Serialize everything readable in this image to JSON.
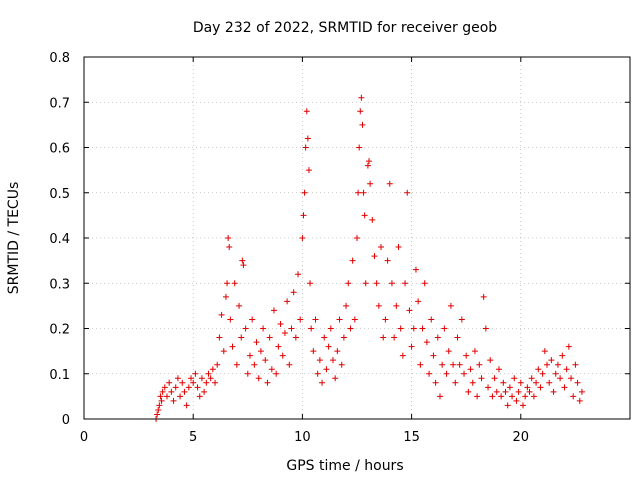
{
  "chart_data": {
    "type": "scatter",
    "title": "Day 232 of 2022, SRMTID for receiver geob",
    "xlabel": "GPS time / hours",
    "ylabel": "SRMTID / TECUs",
    "xlim": [
      0,
      25
    ],
    "ylim": [
      0,
      0.8
    ],
    "xticks": [
      "0",
      "5",
      "10",
      "15",
      "20"
    ],
    "yticks": [
      "0",
      "0.1",
      "0.2",
      "0.3",
      "0.4",
      "0.5",
      "0.6",
      "0.7",
      "0.8"
    ],
    "grid": true,
    "marker": "+",
    "color": "#e00000",
    "series": [
      {
        "name": "SRMTID",
        "points": [
          [
            3.3,
            0.0
          ],
          [
            3.35,
            0.01
          ],
          [
            3.4,
            0.02
          ],
          [
            3.45,
            0.03
          ],
          [
            3.5,
            0.05
          ],
          [
            3.55,
            0.04
          ],
          [
            3.6,
            0.06
          ],
          [
            3.7,
            0.07
          ],
          [
            3.8,
            0.05
          ],
          [
            3.9,
            0.08
          ],
          [
            4.0,
            0.06
          ],
          [
            4.1,
            0.04
          ],
          [
            4.2,
            0.07
          ],
          [
            4.3,
            0.09
          ],
          [
            4.4,
            0.05
          ],
          [
            4.5,
            0.08
          ],
          [
            4.6,
            0.06
          ],
          [
            4.7,
            0.03
          ],
          [
            4.8,
            0.07
          ],
          [
            4.9,
            0.09
          ],
          [
            5.0,
            0.08
          ],
          [
            5.1,
            0.1
          ],
          [
            5.2,
            0.07
          ],
          [
            5.3,
            0.05
          ],
          [
            5.4,
            0.09
          ],
          [
            5.5,
            0.06
          ],
          [
            5.6,
            0.08
          ],
          [
            5.7,
            0.1
          ],
          [
            5.8,
            0.09
          ],
          [
            5.9,
            0.11
          ],
          [
            6.0,
            0.08
          ],
          [
            6.1,
            0.12
          ],
          [
            6.2,
            0.18
          ],
          [
            6.3,
            0.23
          ],
          [
            6.4,
            0.15
          ],
          [
            6.5,
            0.27
          ],
          [
            6.55,
            0.3
          ],
          [
            6.6,
            0.4
          ],
          [
            6.65,
            0.38
          ],
          [
            6.7,
            0.22
          ],
          [
            6.8,
            0.16
          ],
          [
            6.9,
            0.3
          ],
          [
            7.0,
            0.12
          ],
          [
            7.1,
            0.25
          ],
          [
            7.2,
            0.18
          ],
          [
            7.25,
            0.35
          ],
          [
            7.3,
            0.34
          ],
          [
            7.4,
            0.2
          ],
          [
            7.5,
            0.1
          ],
          [
            7.6,
            0.14
          ],
          [
            7.7,
            0.22
          ],
          [
            7.8,
            0.12
          ],
          [
            7.9,
            0.17
          ],
          [
            8.0,
            0.09
          ],
          [
            8.1,
            0.15
          ],
          [
            8.2,
            0.2
          ],
          [
            8.3,
            0.13
          ],
          [
            8.4,
            0.08
          ],
          [
            8.5,
            0.18
          ],
          [
            8.6,
            0.11
          ],
          [
            8.7,
            0.24
          ],
          [
            8.8,
            0.1
          ],
          [
            8.9,
            0.16
          ],
          [
            9.0,
            0.21
          ],
          [
            9.1,
            0.14
          ],
          [
            9.2,
            0.19
          ],
          [
            9.3,
            0.26
          ],
          [
            9.4,
            0.12
          ],
          [
            9.5,
            0.2
          ],
          [
            9.6,
            0.28
          ],
          [
            9.7,
            0.18
          ],
          [
            9.8,
            0.32
          ],
          [
            9.9,
            0.22
          ],
          [
            10.0,
            0.4
          ],
          [
            10.05,
            0.45
          ],
          [
            10.1,
            0.5
          ],
          [
            10.15,
            0.6
          ],
          [
            10.2,
            0.68
          ],
          [
            10.25,
            0.62
          ],
          [
            10.3,
            0.55
          ],
          [
            10.35,
            0.3
          ],
          [
            10.4,
            0.2
          ],
          [
            10.5,
            0.15
          ],
          [
            10.6,
            0.22
          ],
          [
            10.7,
            0.1
          ],
          [
            10.8,
            0.13
          ],
          [
            10.9,
            0.08
          ],
          [
            11.0,
            0.18
          ],
          [
            11.1,
            0.11
          ],
          [
            11.2,
            0.16
          ],
          [
            11.3,
            0.2
          ],
          [
            11.4,
            0.13
          ],
          [
            11.5,
            0.09
          ],
          [
            11.6,
            0.15
          ],
          [
            11.7,
            0.22
          ],
          [
            11.8,
            0.12
          ],
          [
            11.9,
            0.18
          ],
          [
            12.0,
            0.25
          ],
          [
            12.1,
            0.3
          ],
          [
            12.2,
            0.2
          ],
          [
            12.3,
            0.35
          ],
          [
            12.4,
            0.22
          ],
          [
            12.5,
            0.4
          ],
          [
            12.55,
            0.5
          ],
          [
            12.6,
            0.6
          ],
          [
            12.65,
            0.68
          ],
          [
            12.7,
            0.71
          ],
          [
            12.75,
            0.65
          ],
          [
            12.8,
            0.5
          ],
          [
            12.85,
            0.45
          ],
          [
            12.9,
            0.3
          ],
          [
            13.0,
            0.56
          ],
          [
            13.05,
            0.57
          ],
          [
            13.1,
            0.52
          ],
          [
            13.2,
            0.44
          ],
          [
            13.3,
            0.36
          ],
          [
            13.4,
            0.3
          ],
          [
            13.5,
            0.25
          ],
          [
            13.6,
            0.38
          ],
          [
            13.7,
            0.18
          ],
          [
            13.8,
            0.22
          ],
          [
            13.9,
            0.35
          ],
          [
            14.0,
            0.52
          ],
          [
            14.1,
            0.3
          ],
          [
            14.2,
            0.18
          ],
          [
            14.3,
            0.25
          ],
          [
            14.4,
            0.38
          ],
          [
            14.5,
            0.2
          ],
          [
            14.6,
            0.14
          ],
          [
            14.7,
            0.3
          ],
          [
            14.8,
            0.5
          ],
          [
            14.9,
            0.24
          ],
          [
            15.0,
            0.16
          ],
          [
            15.1,
            0.2
          ],
          [
            15.2,
            0.33
          ],
          [
            15.3,
            0.26
          ],
          [
            15.4,
            0.12
          ],
          [
            15.5,
            0.2
          ],
          [
            15.6,
            0.3
          ],
          [
            15.7,
            0.17
          ],
          [
            15.8,
            0.1
          ],
          [
            15.9,
            0.22
          ],
          [
            16.0,
            0.14
          ],
          [
            16.1,
            0.08
          ],
          [
            16.2,
            0.18
          ],
          [
            16.3,
            0.05
          ],
          [
            16.4,
            0.12
          ],
          [
            16.5,
            0.2
          ],
          [
            16.6,
            0.1
          ],
          [
            16.7,
            0.15
          ],
          [
            16.8,
            0.25
          ],
          [
            16.9,
            0.12
          ],
          [
            17.0,
            0.08
          ],
          [
            17.1,
            0.18
          ],
          [
            17.2,
            0.12
          ],
          [
            17.3,
            0.22
          ],
          [
            17.4,
            0.1
          ],
          [
            17.5,
            0.14
          ],
          [
            17.6,
            0.06
          ],
          [
            17.7,
            0.11
          ],
          [
            17.8,
            0.08
          ],
          [
            17.9,
            0.15
          ],
          [
            18.0,
            0.05
          ],
          [
            18.1,
            0.12
          ],
          [
            18.2,
            0.09
          ],
          [
            18.3,
            0.27
          ],
          [
            18.4,
            0.2
          ],
          [
            18.5,
            0.07
          ],
          [
            18.6,
            0.13
          ],
          [
            18.7,
            0.05
          ],
          [
            18.8,
            0.09
          ],
          [
            18.9,
            0.06
          ],
          [
            19.0,
            0.11
          ],
          [
            19.1,
            0.05
          ],
          [
            19.2,
            0.08
          ],
          [
            19.3,
            0.06
          ],
          [
            19.4,
            0.03
          ],
          [
            19.5,
            0.07
          ],
          [
            19.6,
            0.05
          ],
          [
            19.7,
            0.09
          ],
          [
            19.8,
            0.04
          ],
          [
            19.9,
            0.06
          ],
          [
            20.0,
            0.08
          ],
          [
            20.1,
            0.03
          ],
          [
            20.2,
            0.05
          ],
          [
            20.3,
            0.07
          ],
          [
            20.4,
            0.06
          ],
          [
            20.5,
            0.09
          ],
          [
            20.6,
            0.05
          ],
          [
            20.7,
            0.08
          ],
          [
            20.8,
            0.11
          ],
          [
            20.9,
            0.07
          ],
          [
            21.0,
            0.1
          ],
          [
            21.1,
            0.15
          ],
          [
            21.2,
            0.12
          ],
          [
            21.3,
            0.08
          ],
          [
            21.4,
            0.13
          ],
          [
            21.5,
            0.06
          ],
          [
            21.6,
            0.1
          ],
          [
            21.7,
            0.12
          ],
          [
            21.8,
            0.09
          ],
          [
            21.9,
            0.14
          ],
          [
            22.0,
            0.07
          ],
          [
            22.1,
            0.11
          ],
          [
            22.2,
            0.16
          ],
          [
            22.3,
            0.09
          ],
          [
            22.4,
            0.05
          ],
          [
            22.5,
            0.12
          ],
          [
            22.6,
            0.08
          ],
          [
            22.7,
            0.04
          ],
          [
            22.8,
            0.06
          ]
        ]
      }
    ]
  }
}
